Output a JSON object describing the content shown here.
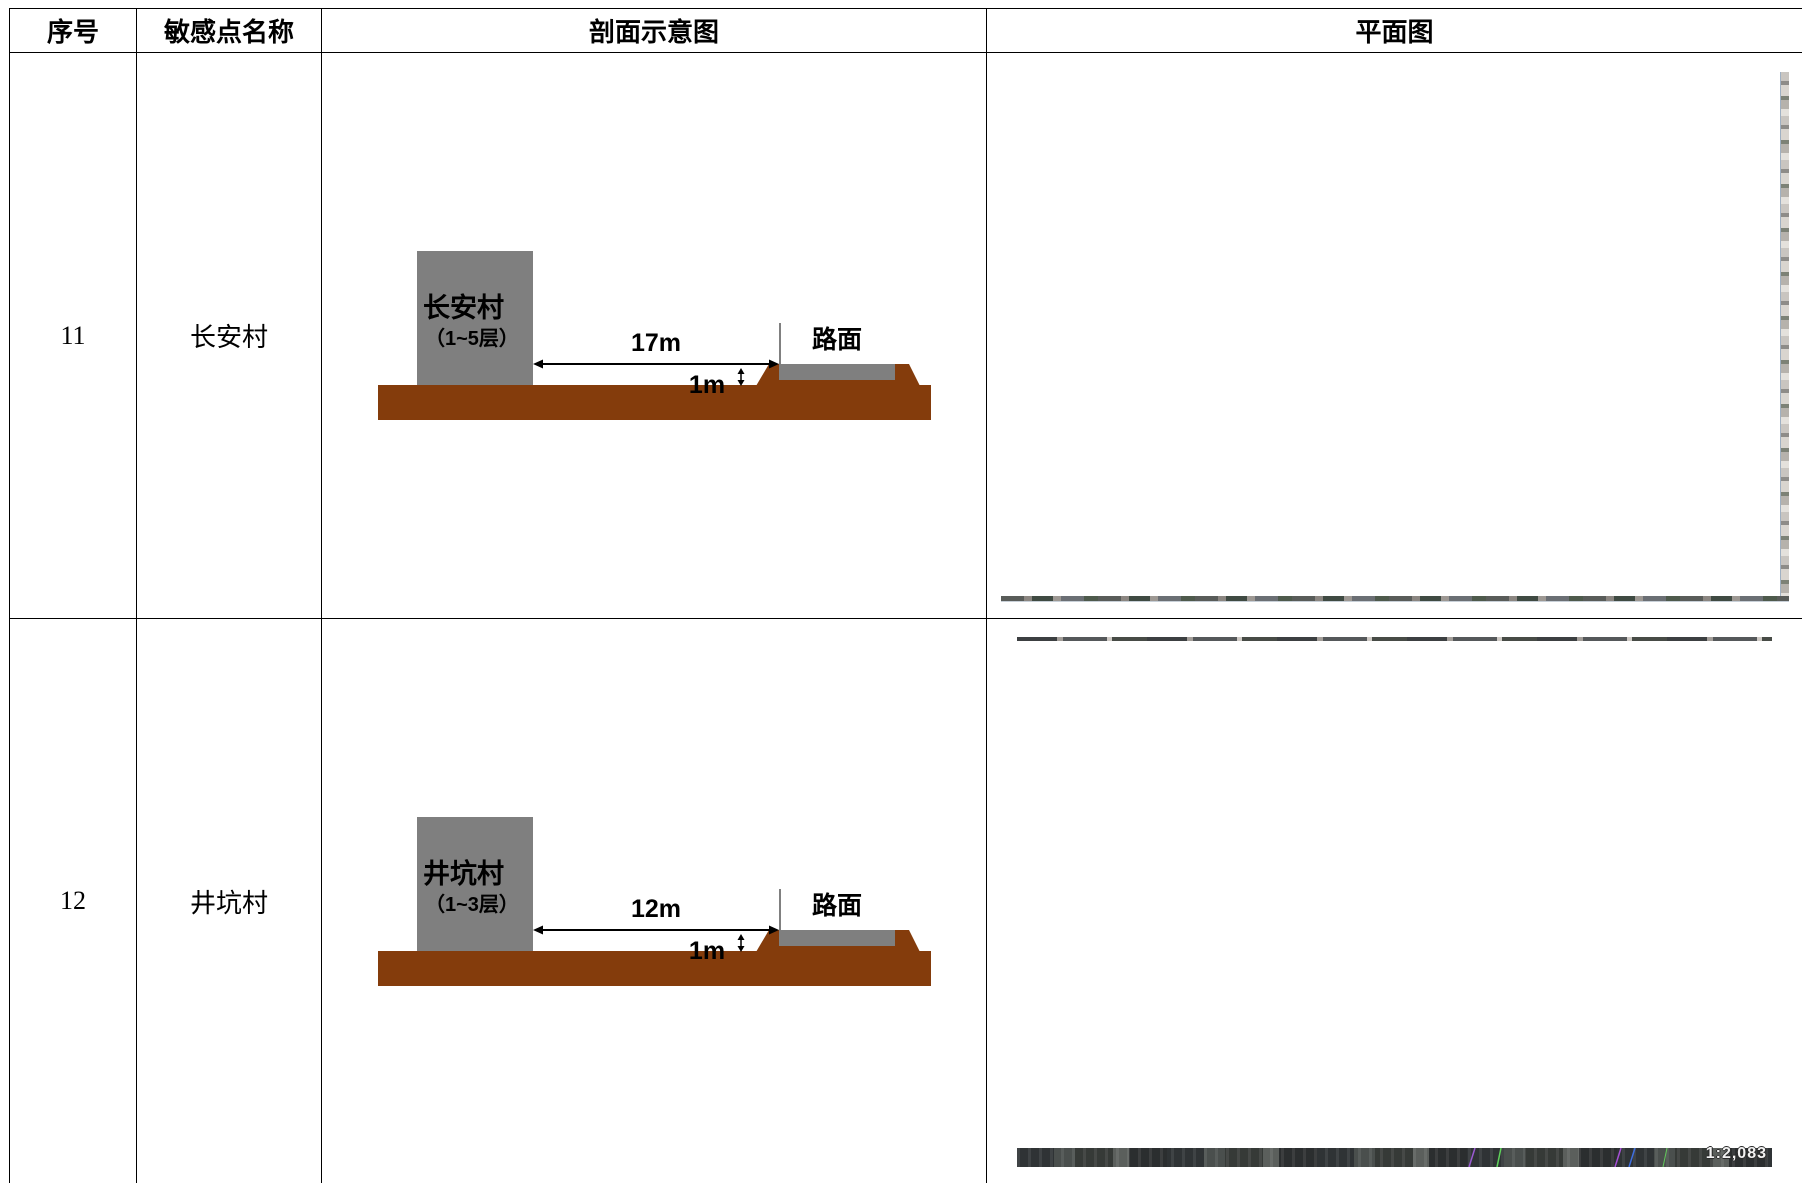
{
  "table": {
    "headers": {
      "index": "序号",
      "name": "敏感点名称",
      "section": "剖面示意图",
      "plan": "平面图"
    },
    "rows": [
      {
        "index": "11",
        "name": "长安村",
        "section": {
          "building_name": "长安村",
          "building_floors": "（1~5层）",
          "distance": "17m",
          "road": "路面",
          "elevation": "1m"
        }
      },
      {
        "index": "12",
        "name": "井坑村",
        "section": {
          "building_name": "井坑村",
          "building_floors": "（1~3层）",
          "distance": "12m",
          "road": "路面",
          "elevation": "1m"
        },
        "plan": {
          "scale": "1:2,083"
        }
      }
    ]
  },
  "colors": {
    "ground": "#843c0c",
    "building": "#7f7f7f",
    "road_surface": "#7f7f7f",
    "line": "#000000"
  }
}
